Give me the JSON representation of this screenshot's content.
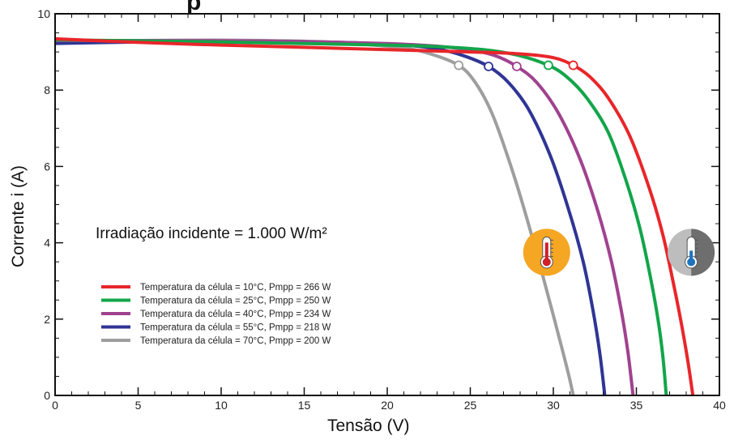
{
  "chart_data": {
    "type": "line",
    "title_fragment": "p",
    "xlabel": "Tensão (V)",
    "ylabel": "Corrente i (A)",
    "xlim": [
      0,
      40
    ],
    "ylim": [
      0,
      10
    ],
    "xticks": [
      0,
      5,
      10,
      15,
      20,
      25,
      30,
      35,
      40
    ],
    "yticks": [
      0,
      2,
      4,
      6,
      8,
      10
    ],
    "grid": false,
    "annotation": "Irradiação incidente = 1.000 W/m²",
    "legend_position": "bottom-left",
    "icons": [
      {
        "name": "hot-thermometer-icon",
        "color": "#F5A623",
        "at_x": 29.6,
        "at_y": 3.75
      },
      {
        "name": "cold-thermometer-icon",
        "color": "#9B9B9B",
        "at_x": 38.3,
        "at_y": 3.75
      }
    ],
    "series": [
      {
        "name": "Temperatura da célula = 10°C, Pmpp = 266 W",
        "color": "#E8262A",
        "x": [
          -0.3,
          5,
          10,
          15,
          20,
          25,
          28,
          30,
          31.2,
          32.2,
          33.3,
          34.6,
          35.8,
          36.6,
          37.2,
          37.7,
          38.1,
          38.4
        ],
        "y": [
          9.35,
          9.25,
          9.18,
          9.12,
          9.06,
          9.0,
          8.95,
          8.85,
          8.65,
          8.35,
          7.8,
          6.8,
          5.4,
          4.2,
          3.0,
          1.9,
          0.9,
          0
        ],
        "mpp": [
          31.2,
          8.65
        ]
      },
      {
        "name": "Temperatura da célula = 25°C, Pmpp = 250 W",
        "color": "#12A54A",
        "x": [
          -0.3,
          5,
          10,
          15,
          20,
          23,
          26,
          28,
          29.7,
          30.8,
          32.0,
          33.3,
          34.4,
          35.2,
          35.8,
          36.3,
          36.6,
          36.8
        ],
        "y": [
          9.32,
          9.29,
          9.26,
          9.22,
          9.18,
          9.14,
          9.05,
          8.9,
          8.65,
          8.35,
          7.8,
          6.9,
          5.6,
          4.4,
          3.2,
          2.0,
          1.0,
          0
        ],
        "mpp": [
          29.7,
          8.65
        ]
      },
      {
        "name": "Temperatura da célula = 40°C, Pmpp = 234 W",
        "color": "#A0428F",
        "x": [
          -0.3,
          5,
          10,
          15,
          20,
          23,
          25,
          26.5,
          27.8,
          29.0,
          30.3,
          31.6,
          32.7,
          33.5,
          34.1,
          34.5,
          34.8
        ],
        "y": [
          9.3,
          9.3,
          9.29,
          9.27,
          9.22,
          9.15,
          9.05,
          8.9,
          8.62,
          8.2,
          7.4,
          6.2,
          4.8,
          3.5,
          2.2,
          1.1,
          0
        ],
        "mpp": [
          27.8,
          8.62
        ]
      },
      {
        "name": "Temperatura da célula = 55°C, Pmpp = 218 W",
        "color": "#2F3595",
        "x": [
          -0.3,
          5,
          10,
          15,
          18,
          21,
          23,
          24.6,
          26.1,
          27.3,
          28.5,
          29.8,
          30.9,
          31.8,
          32.4,
          32.8,
          33.1
        ],
        "y": [
          9.22,
          9.26,
          9.28,
          9.27,
          9.24,
          9.18,
          9.08,
          8.9,
          8.62,
          8.2,
          7.5,
          6.3,
          4.9,
          3.5,
          2.2,
          1.1,
          0
        ],
        "mpp": [
          26.1,
          8.62
        ]
      },
      {
        "name": "Temperatura da célula = 70°C, Pmpp = 200 W",
        "color": "#9E9E9E",
        "x": [
          -0.3,
          5,
          10,
          15,
          18,
          21,
          22.6,
          24.3,
          25.3,
          26.3,
          27.3,
          28.3,
          29.2,
          30.0,
          30.6,
          31.0,
          31.2
        ],
        "y": [
          9.28,
          9.3,
          9.31,
          9.28,
          9.22,
          9.1,
          8.95,
          8.65,
          8.2,
          7.4,
          6.2,
          4.8,
          3.4,
          2.1,
          1.1,
          0.4,
          0
        ],
        "mpp": [
          24.3,
          8.65
        ]
      }
    ]
  }
}
